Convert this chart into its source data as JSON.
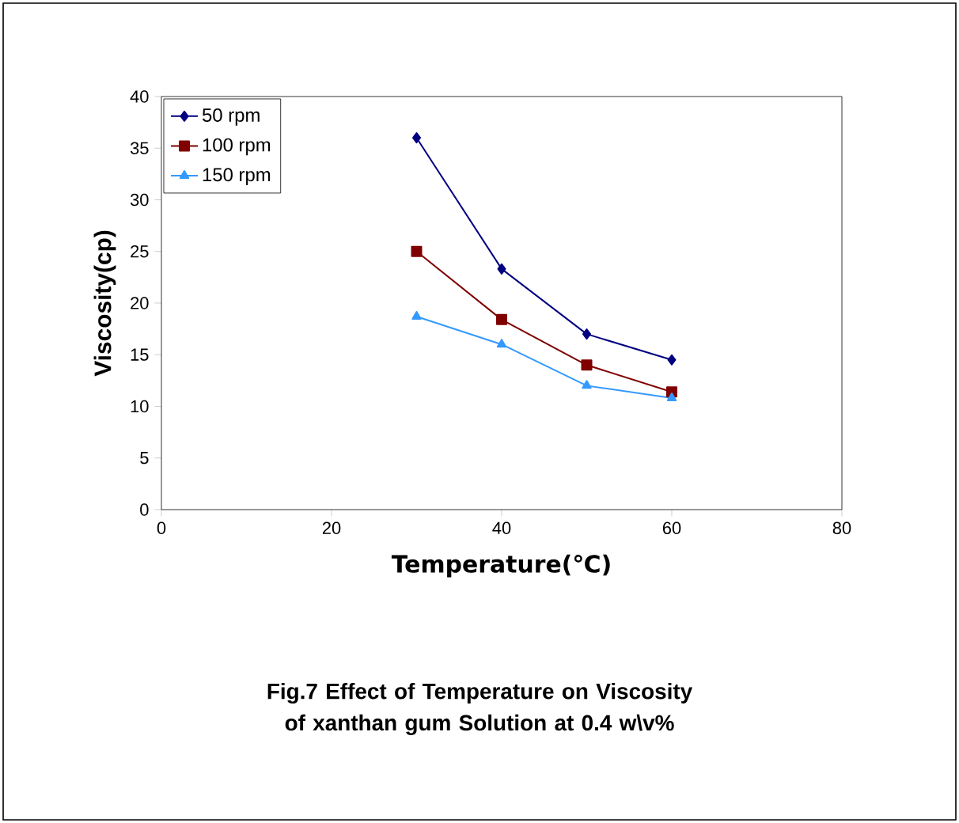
{
  "chart_data": {
    "type": "line",
    "xlabel": "Temperature(℃)",
    "ylabel": "Viscosity(cp)",
    "annotations": [
      "Fig.7 Effect of Temperature on Viscosity of xanthan gum Solution at 0.4 w\\v%"
    ],
    "xlim": [
      0,
      80
    ],
    "xticks": [
      0,
      20,
      40,
      60,
      80
    ],
    "ylim": [
      0,
      40
    ],
    "yticks": [
      0,
      5,
      10,
      15,
      20,
      25,
      30,
      35,
      40
    ],
    "legend": "top left",
    "grid": false,
    "series": [
      {
        "name": "50 rpm",
        "color": "#000080",
        "marker": "diamond",
        "x": [
          30,
          40,
          50,
          60
        ],
        "values": [
          36,
          23.3,
          17,
          14.5
        ]
      },
      {
        "name": "100 rpm",
        "color": "#800000",
        "marker": "square",
        "x": [
          30,
          40,
          50,
          60
        ],
        "values": [
          25,
          18.4,
          14,
          11.4
        ]
      },
      {
        "name": "150 rpm",
        "color": "#3399ff",
        "marker": "triangle",
        "x": [
          30,
          40,
          50,
          60
        ],
        "values": [
          18.7,
          16,
          12,
          10.8
        ]
      }
    ]
  }
}
